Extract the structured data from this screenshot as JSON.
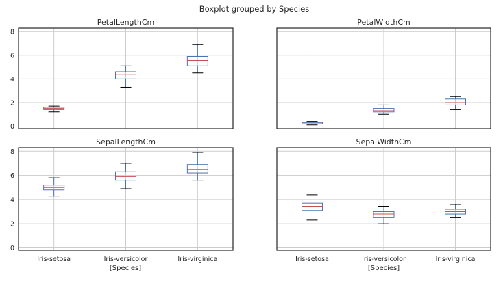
{
  "figure": {
    "suptitle": "Boxplot grouped by Species",
    "xlabel": "[Species]"
  },
  "chart_data": {
    "type": "boxplot",
    "categories": [
      "Iris-setosa",
      "Iris-versicolor",
      "Iris-virginica"
    ],
    "ylim": [
      -0.2,
      8.3
    ],
    "yticks": [
      0,
      2,
      4,
      6,
      8
    ],
    "grid": true,
    "sharey": true,
    "colors": {
      "box": "#4c72b0",
      "median": "#c44e52",
      "cap": "#000000"
    },
    "panels": [
      {
        "title": "PetalLengthCm",
        "boxes": [
          {
            "min": 1.2,
            "q1": 1.4,
            "median": 1.5,
            "q3": 1.6,
            "max": 1.7
          },
          {
            "min": 3.3,
            "q1": 4.0,
            "median": 4.35,
            "q3": 4.6,
            "max": 5.1
          },
          {
            "min": 4.5,
            "q1": 5.1,
            "median": 5.55,
            "q3": 5.9,
            "max": 6.9
          }
        ]
      },
      {
        "title": "PetalWidthCm",
        "boxes": [
          {
            "min": 0.1,
            "q1": 0.2,
            "median": 0.2,
            "q3": 0.3,
            "max": 0.4
          },
          {
            "min": 1.0,
            "q1": 1.2,
            "median": 1.3,
            "q3": 1.5,
            "max": 1.8
          },
          {
            "min": 1.4,
            "q1": 1.8,
            "median": 2.0,
            "q3": 2.3,
            "max": 2.5
          }
        ]
      },
      {
        "title": "SepalLengthCm",
        "boxes": [
          {
            "min": 4.3,
            "q1": 4.8,
            "median": 5.0,
            "q3": 5.2,
            "max": 5.8
          },
          {
            "min": 4.9,
            "q1": 5.6,
            "median": 5.9,
            "q3": 6.3,
            "max": 7.0
          },
          {
            "min": 5.6,
            "q1": 6.2,
            "median": 6.5,
            "q3": 6.9,
            "max": 7.9
          }
        ]
      },
      {
        "title": "SepalWidthCm",
        "boxes": [
          {
            "min": 2.3,
            "q1": 3.1,
            "median": 3.4,
            "q3": 3.7,
            "max": 4.4
          },
          {
            "min": 2.0,
            "q1": 2.5,
            "median": 2.8,
            "q3": 3.0,
            "max": 3.4
          },
          {
            "min": 2.5,
            "q1": 2.8,
            "median": 3.0,
            "q3": 3.2,
            "max": 3.6
          }
        ]
      }
    ]
  }
}
